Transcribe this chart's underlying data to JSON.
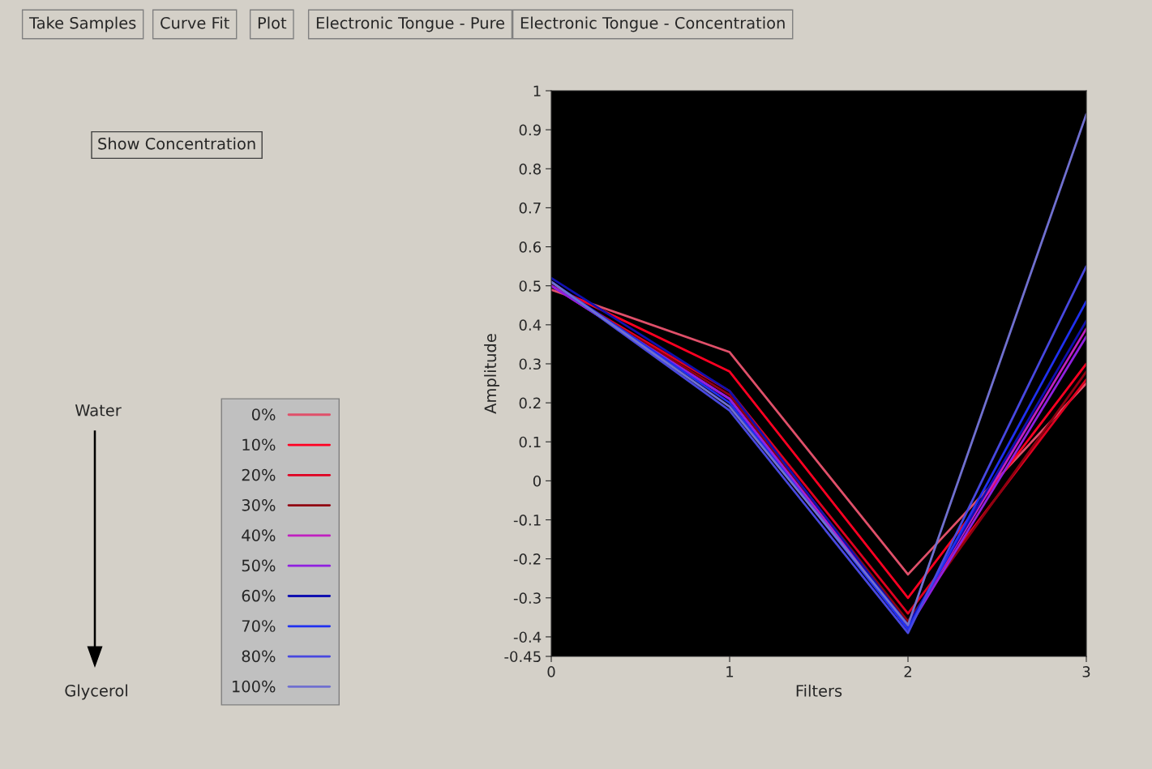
{
  "chart_data": {
    "type": "line",
    "xlabel": "Filters",
    "ylabel": "Amplitude",
    "x": [
      0,
      1,
      2,
      3
    ],
    "series": [
      {
        "name": "0%",
        "color": "#e0506a",
        "values": [
          0.49,
          0.33,
          -0.24,
          0.25
        ]
      },
      {
        "name": "10%",
        "color": "#ff0022",
        "values": [
          0.5,
          0.28,
          -0.3,
          0.3
        ]
      },
      {
        "name": "20%",
        "color": "#e00020",
        "values": [
          0.5,
          0.23,
          -0.34,
          0.26
        ]
      },
      {
        "name": "30%",
        "color": "#900010",
        "values": [
          0.5,
          0.22,
          -0.36,
          0.28
        ]
      },
      {
        "name": "40%",
        "color": "#c020c0",
        "values": [
          0.5,
          0.21,
          -0.37,
          0.39
        ]
      },
      {
        "name": "50%",
        "color": "#9020e0",
        "values": [
          0.5,
          0.21,
          -0.38,
          0.37
        ]
      },
      {
        "name": "60%",
        "color": "#1010b0",
        "values": [
          0.52,
          0.23,
          -0.37,
          0.41
        ]
      },
      {
        "name": "70%",
        "color": "#2030f0",
        "values": [
          0.51,
          0.2,
          -0.38,
          0.46
        ]
      },
      {
        "name": "80%",
        "color": "#4848e0",
        "values": [
          0.51,
          0.18,
          -0.39,
          0.55
        ]
      },
      {
        "name": "100%",
        "color": "#7070d0",
        "values": [
          0.51,
          0.19,
          -0.37,
          0.94
        ]
      }
    ],
    "xlim": [
      0,
      3
    ],
    "xticks": [
      0,
      1,
      2,
      3
    ],
    "ylim": [
      -0.45,
      1
    ],
    "yticks": [
      1,
      0.9,
      0.8,
      0.7,
      0.6,
      0.5,
      0.4,
      0.3,
      0.2,
      0.1,
      0,
      -0.1,
      -0.2,
      -0.3,
      -0.4,
      -0.45
    ],
    "grid": false,
    "legend": "left",
    "marker": "none",
    "line_style": "solid",
    "annotations": [
      "Take Samples",
      "Curve Fit",
      "Plot",
      "Electronic Tongue - Pure",
      "Electronic Tongue - Concentration",
      "Show Concentration",
      "Water",
      "Glycerol"
    ]
  }
}
